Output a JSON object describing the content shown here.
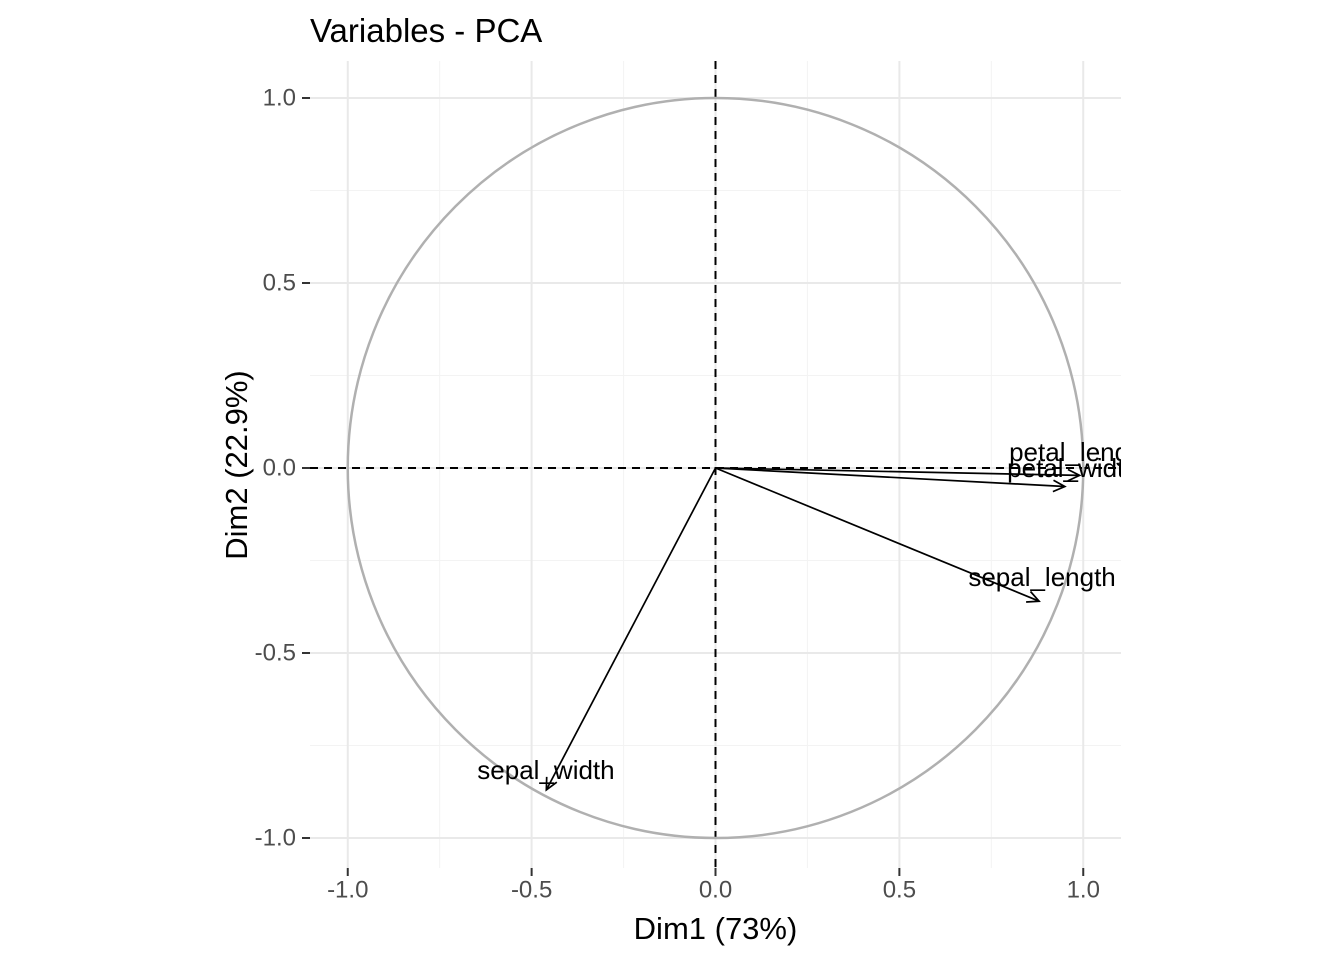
{
  "title": "Variables - PCA",
  "colors": {
    "background": "#ffffff",
    "grid_major": "#e9e9e9",
    "grid_minor": "#f3f3f3",
    "circle": "#b0b0b0",
    "axis_tick": "#333333",
    "axis_text": "#4d4d4d",
    "zero_line": "#000000",
    "arrow": "#000000",
    "label": "#000000",
    "title_text": "#000000"
  },
  "chart_data": {
    "type": "scatter",
    "subtype": "pca-variable-correlation-circle",
    "title": "Variables - PCA",
    "xlabel": "Dim1 (73%)",
    "ylabel": "Dim2 (22.9%)",
    "xlim": [
      -1.1,
      1.1
    ],
    "ylim": [
      -1.08,
      1.1
    ],
    "grid": "major+minor",
    "legend": false,
    "unit_circle_radius": 1,
    "zero_lines": "dashed at x=0 and y=0",
    "x_ticks": {
      "values": [
        -1.0,
        -0.5,
        0.0,
        0.5,
        1.0
      ],
      "labels": [
        "-1.0",
        "-0.5",
        "0.0",
        "0.5",
        "1.0"
      ]
    },
    "y_ticks": {
      "values": [
        -1.0,
        -0.5,
        0.0,
        0.5,
        1.0
      ],
      "labels": [
        "-1.0",
        "-0.5",
        "0.0",
        "0.5",
        "1.0"
      ]
    },
    "x_minor": [
      -0.75,
      -0.25,
      0.25,
      0.75
    ],
    "y_minor": [
      -0.75,
      -0.25,
      0.25,
      0.75
    ],
    "variables": [
      {
        "name": "petal_length",
        "x": 0.99,
        "y": -0.02,
        "label_x": 0.991,
        "label_y": 0.043
      },
      {
        "name": "petal_width",
        "x": 0.95,
        "y": -0.05,
        "label_x": 0.972,
        "label_y": 0.0
      },
      {
        "name": "sepal_length",
        "x": 0.88,
        "y": -0.36,
        "label_x": 0.888,
        "label_y": -0.295
      },
      {
        "name": "sepal_width",
        "x": -0.46,
        "y": -0.87,
        "label_x": -0.461,
        "label_y": -0.816
      }
    ]
  }
}
